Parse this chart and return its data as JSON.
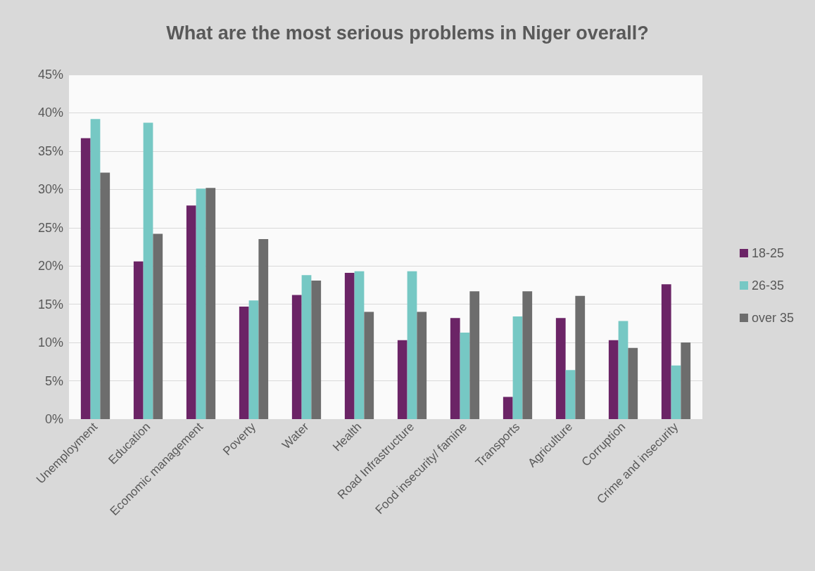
{
  "chart_data": {
    "type": "bar",
    "title": "What are the most serious problems in Niger overall?",
    "categories": [
      "Unemployment",
      "Education",
      "Economic management",
      "Poverty",
      "Water",
      "Health",
      "Road Infrastructure",
      "Food insecurity/ famine",
      "Transports",
      "Agriculture",
      "Corruption",
      "Crime and insecurity"
    ],
    "series": [
      {
        "name": "18-25",
        "color": "#6b2466",
        "values": [
          36.7,
          20.6,
          27.9,
          14.7,
          16.2,
          19.1,
          10.3,
          13.2,
          2.9,
          13.2,
          10.3,
          17.6
        ]
      },
      {
        "name": "26-35",
        "color": "#76c8c4",
        "values": [
          39.2,
          38.7,
          30.1,
          15.5,
          18.8,
          19.3,
          19.3,
          11.3,
          13.4,
          6.4,
          12.8,
          7.0
        ]
      },
      {
        "name": "over 35",
        "color": "#6d6d6d",
        "values": [
          32.2,
          24.2,
          30.2,
          23.5,
          18.1,
          14.0,
          14.0,
          16.7,
          16.7,
          16.1,
          9.3,
          10.0
        ]
      }
    ],
    "ylim": [
      0,
      45
    ],
    "yticks": [
      {
        "value": 0,
        "label": "0%"
      },
      {
        "value": 5,
        "label": "5%"
      },
      {
        "value": 10,
        "label": "10%"
      },
      {
        "value": 15,
        "label": "15%"
      },
      {
        "value": 20,
        "label": "20%"
      },
      {
        "value": 25,
        "label": "25%"
      },
      {
        "value": 30,
        "label": "30%"
      },
      {
        "value": 35,
        "label": "35%"
      },
      {
        "value": 40,
        "label": "40%"
      },
      {
        "value": 45,
        "label": "45%"
      }
    ],
    "grid": "y",
    "legend": "right"
  }
}
